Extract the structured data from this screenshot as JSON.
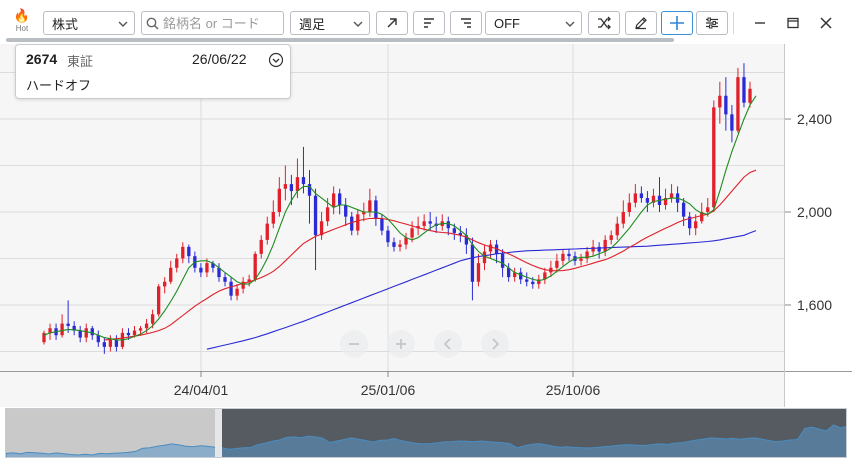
{
  "toolbar": {
    "hot_label": "Hot",
    "market_select": "株式",
    "search_placeholder": "銘柄名 or コード",
    "period_select": "週足",
    "indicator_select": "OFF"
  },
  "ticker": {
    "code": "2674",
    "exchange": "東証",
    "date": "26/06/22",
    "name": "ハードオフ"
  },
  "chart_data": {
    "type": "candlestick",
    "x_tick_labels": [
      "24/04/01",
      "25/01/06",
      "25/10/06"
    ],
    "y_tick_labels": [
      "1,600",
      "2,000",
      "2,400"
    ],
    "y_ticks": [
      1600,
      2000,
      2400
    ],
    "y_range": [
      1380,
      2650
    ],
    "grid": true,
    "colors": {
      "up": "#e0202a",
      "down": "#2b2bd6",
      "ma_short": "#1e8c1e",
      "ma_mid": "#e0202a",
      "ma_long": "#2b2bd6"
    },
    "candles": [
      [
        1440,
        1480,
        1430,
        1490
      ],
      [
        1480,
        1500,
        1450,
        1520
      ],
      [
        1500,
        1470,
        1450,
        1520
      ],
      [
        1470,
        1520,
        1460,
        1560
      ],
      [
        1520,
        1510,
        1480,
        1620
      ],
      [
        1510,
        1490,
        1470,
        1530
      ],
      [
        1490,
        1460,
        1440,
        1510
      ],
      [
        1460,
        1500,
        1440,
        1520
      ],
      [
        1500,
        1470,
        1450,
        1510
      ],
      [
        1470,
        1440,
        1420,
        1490
      ],
      [
        1440,
        1420,
        1390,
        1460
      ],
      [
        1420,
        1450,
        1400,
        1470
      ],
      [
        1450,
        1420,
        1400,
        1470
      ],
      [
        1420,
        1480,
        1410,
        1500
      ],
      [
        1480,
        1470,
        1450,
        1500
      ],
      [
        1470,
        1490,
        1460,
        1510
      ],
      [
        1490,
        1500,
        1470,
        1510
      ],
      [
        1500,
        1520,
        1480,
        1540
      ],
      [
        1520,
        1560,
        1500,
        1580
      ],
      [
        1560,
        1680,
        1550,
        1690
      ],
      [
        1680,
        1700,
        1650,
        1720
      ],
      [
        1700,
        1760,
        1690,
        1790
      ],
      [
        1760,
        1800,
        1740,
        1820
      ],
      [
        1800,
        1850,
        1780,
        1870
      ],
      [
        1850,
        1810,
        1780,
        1860
      ],
      [
        1810,
        1760,
        1740,
        1830
      ],
      [
        1760,
        1740,
        1720,
        1780
      ],
      [
        1740,
        1780,
        1720,
        1800
      ],
      [
        1780,
        1760,
        1740,
        1790
      ],
      [
        1760,
        1720,
        1700,
        1780
      ],
      [
        1720,
        1700,
        1680,
        1740
      ],
      [
        1700,
        1640,
        1620,
        1720
      ],
      [
        1640,
        1670,
        1620,
        1690
      ],
      [
        1670,
        1700,
        1650,
        1720
      ],
      [
        1700,
        1710,
        1680,
        1730
      ],
      [
        1710,
        1820,
        1700,
        1830
      ],
      [
        1820,
        1880,
        1800,
        1900
      ],
      [
        1880,
        1950,
        1860,
        1980
      ],
      [
        1950,
        2000,
        1930,
        2050
      ],
      [
        2000,
        2100,
        1980,
        2150
      ],
      [
        2100,
        2120,
        2050,
        2200
      ],
      [
        2120,
        2090,
        2030,
        2160
      ],
      [
        2090,
        2150,
        2060,
        2230
      ],
      [
        2150,
        2120,
        2080,
        2280
      ],
      [
        2120,
        2070,
        1950,
        2180
      ],
      [
        2070,
        1900,
        1750,
        2100
      ],
      [
        1900,
        1960,
        1880,
        2000
      ],
      [
        1960,
        2020,
        1940,
        2060
      ],
      [
        2020,
        2080,
        1990,
        2110
      ],
      [
        2080,
        2030,
        1990,
        2100
      ],
      [
        2030,
        1980,
        1940,
        2060
      ],
      [
        1980,
        1920,
        1900,
        2000
      ],
      [
        1920,
        1990,
        1900,
        2010
      ],
      [
        1990,
        2000,
        1960,
        2040
      ],
      [
        2000,
        2050,
        1980,
        2100
      ],
      [
        2050,
        1970,
        1940,
        2070
      ],
      [
        1970,
        1920,
        1900,
        1990
      ],
      [
        1920,
        1870,
        1850,
        1940
      ],
      [
        1870,
        1850,
        1830,
        1890
      ],
      [
        1850,
        1860,
        1830,
        1880
      ],
      [
        1860,
        1890,
        1840,
        1910
      ],
      [
        1890,
        1930,
        1870,
        1960
      ],
      [
        1930,
        1940,
        1900,
        1980
      ],
      [
        1940,
        1960,
        1920,
        1990
      ],
      [
        1960,
        1950,
        1920,
        2000
      ],
      [
        1950,
        1940,
        1910,
        1980
      ],
      [
        1940,
        1960,
        1920,
        1990
      ],
      [
        1960,
        1930,
        1900,
        1980
      ],
      [
        1930,
        1910,
        1880,
        1950
      ],
      [
        1910,
        1900,
        1870,
        1940
      ],
      [
        1900,
        1860,
        1820,
        1930
      ],
      [
        1860,
        1700,
        1620,
        1890
      ],
      [
        1700,
        1780,
        1680,
        1820
      ],
      [
        1780,
        1830,
        1750,
        1860
      ],
      [
        1830,
        1860,
        1800,
        1880
      ],
      [
        1860,
        1820,
        1780,
        1880
      ],
      [
        1820,
        1760,
        1720,
        1840
      ],
      [
        1760,
        1720,
        1700,
        1780
      ],
      [
        1720,
        1740,
        1700,
        1760
      ],
      [
        1740,
        1710,
        1690,
        1760
      ],
      [
        1710,
        1700,
        1680,
        1740
      ],
      [
        1700,
        1690,
        1670,
        1720
      ],
      [
        1690,
        1710,
        1670,
        1730
      ],
      [
        1710,
        1740,
        1690,
        1760
      ],
      [
        1740,
        1760,
        1720,
        1790
      ],
      [
        1760,
        1790,
        1740,
        1820
      ],
      [
        1790,
        1820,
        1770,
        1840
      ],
      [
        1820,
        1810,
        1790,
        1840
      ],
      [
        1810,
        1790,
        1770,
        1830
      ],
      [
        1790,
        1800,
        1770,
        1820
      ],
      [
        1800,
        1830,
        1780,
        1850
      ],
      [
        1830,
        1850,
        1810,
        1880
      ],
      [
        1850,
        1830,
        1800,
        1870
      ],
      [
        1830,
        1880,
        1810,
        1900
      ],
      [
        1880,
        1900,
        1860,
        1920
      ],
      [
        1900,
        1950,
        1880,
        1980
      ],
      [
        1950,
        2000,
        1930,
        2050
      ],
      [
        2000,
        2040,
        1980,
        2080
      ],
      [
        2040,
        2080,
        2020,
        2120
      ],
      [
        2080,
        2060,
        2040,
        2110
      ],
      [
        2060,
        2040,
        2000,
        2090
      ],
      [
        2040,
        2070,
        2020,
        2100
      ],
      [
        2070,
        2030,
        2000,
        2150
      ],
      [
        2030,
        2060,
        2010,
        2100
      ],
      [
        2060,
        2080,
        2040,
        2120
      ],
      [
        2080,
        2040,
        2000,
        2110
      ],
      [
        2040,
        1980,
        1940,
        2060
      ],
      [
        1980,
        1930,
        1900,
        2000
      ],
      [
        1930,
        1960,
        1900,
        1990
      ],
      [
        1960,
        2000,
        1950,
        2040
      ],
      [
        2000,
        2020,
        1980,
        2060
      ],
      [
        2020,
        2450,
        2000,
        2480
      ],
      [
        2450,
        2500,
        2380,
        2560
      ],
      [
        2500,
        2420,
        2350,
        2580
      ],
      [
        2420,
        2350,
        2300,
        2460
      ],
      [
        2350,
        2580,
        2340,
        2620
      ],
      [
        2580,
        2470,
        2450,
        2640
      ],
      [
        2470,
        2530,
        2450,
        2560
      ]
    ],
    "ma_short": [
      1470,
      1480,
      1485,
      1490,
      1495,
      1493,
      1490,
      1485,
      1480,
      1470,
      1460,
      1455,
      1450,
      1450,
      1455,
      1465,
      1475,
      1490,
      1510,
      1540,
      1575,
      1615,
      1660,
      1710,
      1760,
      1785,
      1790,
      1790,
      1780,
      1760,
      1740,
      1720,
      1700,
      1690,
      1690,
      1710,
      1750,
      1800,
      1860,
      1930,
      2000,
      2050,
      2090,
      2110,
      2110,
      2080,
      2060,
      2040,
      2020,
      2030,
      2030,
      2020,
      2010,
      2000,
      2000,
      2000,
      1990,
      1970,
      1940,
      1910,
      1890,
      1880,
      1890,
      1910,
      1930,
      1945,
      1950,
      1950,
      1940,
      1920,
      1900,
      1860,
      1830,
      1810,
      1800,
      1790,
      1780,
      1760,
      1740,
      1730,
      1720,
      1710,
      1705,
      1710,
      1725,
      1745,
      1765,
      1785,
      1800,
      1805,
      1805,
      1810,
      1820,
      1830,
      1845,
      1870,
      1900,
      1930,
      1965,
      2000,
      2030,
      2045,
      2050,
      2055,
      2060,
      2060,
      2050,
      2035,
      2010,
      1995,
      1990,
      2010,
      2090,
      2180,
      2260,
      2330,
      2400,
      2460,
      2500
    ],
    "ma_mid": [
      null,
      null,
      null,
      null,
      null,
      null,
      null,
      null,
      null,
      null,
      1450,
      1452,
      1455,
      1458,
      1462,
      1466,
      1470,
      1476,
      1482,
      1490,
      1500,
      1515,
      1535,
      1555,
      1575,
      1595,
      1612,
      1628,
      1645,
      1660,
      1670,
      1678,
      1685,
      1693,
      1700,
      1708,
      1718,
      1730,
      1745,
      1765,
      1790,
      1815,
      1840,
      1865,
      1880,
      1895,
      1905,
      1915,
      1925,
      1935,
      1945,
      1955,
      1962,
      1968,
      1972,
      1973,
      1972,
      1968,
      1962,
      1955,
      1948,
      1940,
      1932,
      1926,
      1920,
      1915,
      1912,
      1910,
      1905,
      1900,
      1892,
      1880,
      1868,
      1858,
      1850,
      1842,
      1830,
      1820,
      1808,
      1795,
      1782,
      1770,
      1760,
      1752,
      1748,
      1747,
      1748,
      1752,
      1758,
      1765,
      1772,
      1780,
      1788,
      1795,
      1805,
      1818,
      1832,
      1848,
      1862,
      1878,
      1892,
      1905,
      1918,
      1930,
      1942,
      1955,
      1965,
      1972,
      1978,
      1985,
      1990,
      2005,
      2030,
      2060,
      2090,
      2120,
      2150,
      2170,
      2180
    ],
    "ma_long": [
      null,
      null,
      null,
      null,
      null,
      null,
      null,
      null,
      null,
      null,
      null,
      null,
      null,
      null,
      null,
      null,
      null,
      null,
      null,
      null,
      null,
      null,
      null,
      null,
      null,
      null,
      null,
      1410,
      1416,
      1422,
      1428,
      1434,
      1440,
      1446,
      1453,
      1460,
      1468,
      1476,
      1485,
      1494,
      1503,
      1512,
      1521,
      1530,
      1540,
      1550,
      1560,
      1570,
      1580,
      1590,
      1600,
      1610,
      1620,
      1630,
      1640,
      1650,
      1660,
      1670,
      1680,
      1690,
      1700,
      1710,
      1720,
      1730,
      1740,
      1750,
      1760,
      1770,
      1780,
      1790,
      1797,
      1803,
      1808,
      1812,
      1816,
      1820,
      1823,
      1826,
      1829,
      1831,
      1833,
      1834,
      1835,
      1836,
      1837,
      1838,
      1839,
      1840,
      1841,
      1842,
      1843,
      1844,
      1845,
      1846,
      1847,
      1848,
      1849,
      1850,
      1851,
      1852,
      1853,
      1855,
      1857,
      1859,
      1861,
      1863,
      1865,
      1867,
      1869,
      1871,
      1873,
      1876,
      1880,
      1885,
      1890,
      1895,
      1900,
      1910,
      1920
    ]
  }
}
